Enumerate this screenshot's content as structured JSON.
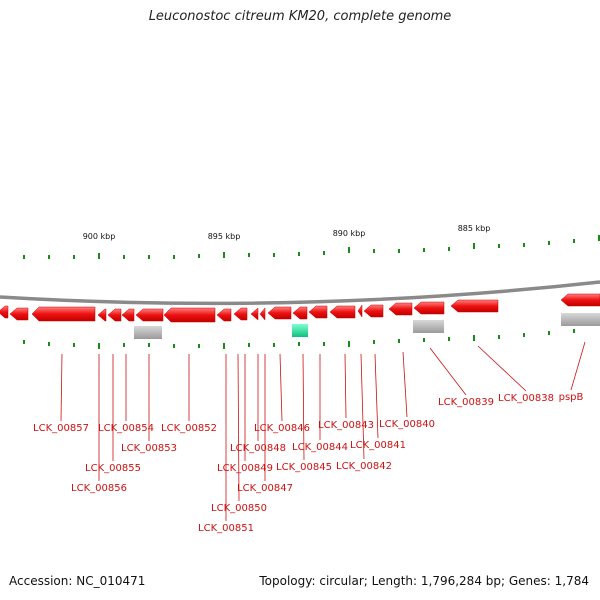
{
  "title": "Leuconostoc citreum KM20, complete genome",
  "footer": {
    "accession": "Accession: NC_010471",
    "topology": "Topology: circular; Length: 1,796,284 bp; Genes: 1,784"
  },
  "scale_labels": [
    "900 kbp",
    "895 kbp",
    "890 kbp",
    "885 kbp"
  ],
  "gene_labels": [
    "LCK_00857",
    "LCK_00856",
    "LCK_00855",
    "LCK_00854",
    "LCK_00853",
    "LCK_00852",
    "LCK_00851",
    "LCK_00850",
    "LCK_00849",
    "LCK_00848",
    "LCK_00847",
    "LCK_00846",
    "LCK_00845",
    "LCK_00844",
    "LCK_00843",
    "LCK_00842",
    "LCK_00841",
    "LCK_00840",
    "LCK_00839",
    "LCK_00838",
    "pspB"
  ],
  "colors": {
    "gene": "#ee1111",
    "gene_highlight": "#ff7070",
    "backbone": "#7a7a7a",
    "rna": "#2ee8a8",
    "other": "#b0b0b0",
    "tick": "#1a8a1a",
    "label": "#cc1111"
  }
}
